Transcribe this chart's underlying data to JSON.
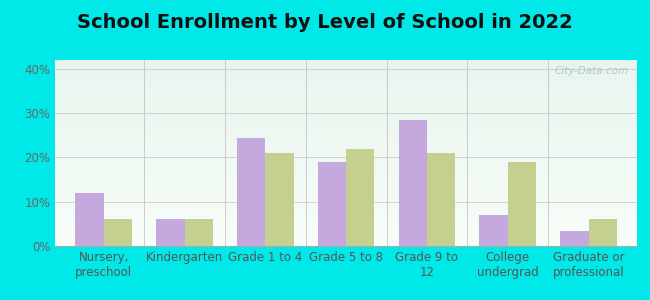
{
  "title": "School Enrollment by Level of School in 2022",
  "categories": [
    "Nursery,\npreschool",
    "Kindergarten",
    "Grade 1 to 4",
    "Grade 5 to 8",
    "Grade 9 to\n12",
    "College\nundergrad",
    "Graduate or\nprofessional"
  ],
  "zip_values": [
    12,
    6,
    24.5,
    19,
    28.5,
    7,
    3.5
  ],
  "wa_values": [
    6,
    6,
    21,
    22,
    21,
    19,
    6
  ],
  "zip_color": "#c4a8de",
  "wa_color": "#c5cf90",
  "ylim": [
    0,
    42
  ],
  "yticks": [
    0,
    10,
    20,
    30,
    40
  ],
  "ytick_labels": [
    "0%",
    "10%",
    "20%",
    "30%",
    "40%"
  ],
  "background_outer": "#00e8e8",
  "background_inner_top": "#e8f5ee",
  "background_inner_bottom": "#f8fdf8",
  "title_fontsize": 14,
  "tick_fontsize": 8.5,
  "legend_fontsize": 9.5,
  "bar_width": 0.35,
  "watermark": "City-Data.com"
}
